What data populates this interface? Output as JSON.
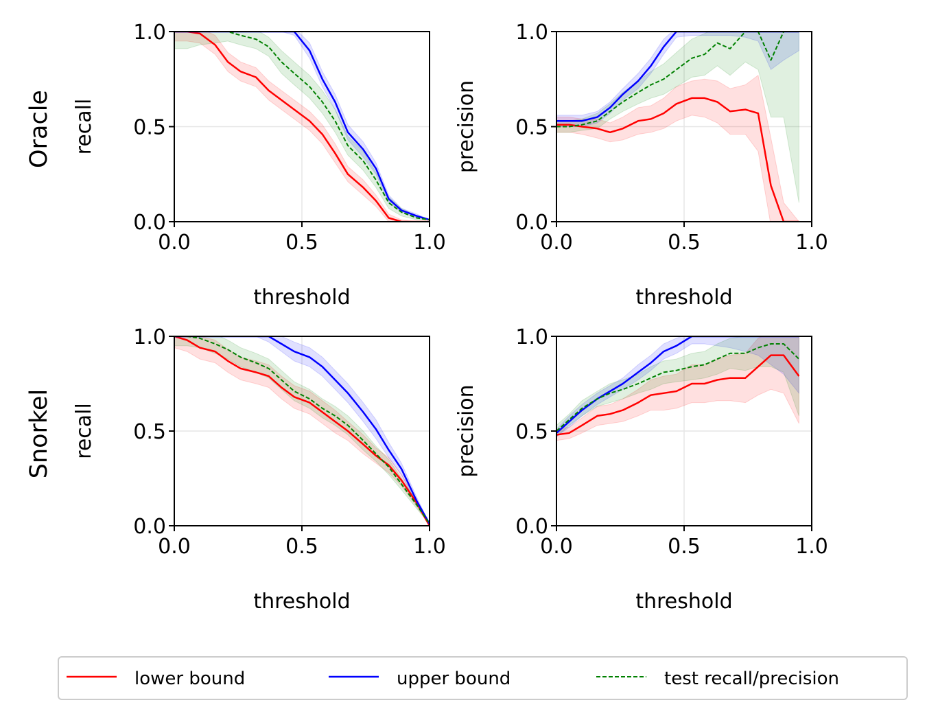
{
  "figure": {
    "row_labels": [
      "Oracle",
      "Snorkel"
    ],
    "colors": {
      "lower": "#ff0000",
      "upper": "#0000ff",
      "test": "#008000"
    },
    "legend": {
      "placement": "bottom-center",
      "entries": [
        {
          "key": "lower",
          "label": "lower bound",
          "style": "solid"
        },
        {
          "key": "upper",
          "label": "upper bound",
          "style": "solid"
        },
        {
          "key": "test",
          "label": "test recall/precision",
          "style": "dashed"
        }
      ]
    }
  },
  "chart_data": [
    {
      "type": "line",
      "row_label": "Oracle",
      "xlabel": "threshold",
      "ylabel": "recall",
      "xlim": [
        0,
        1
      ],
      "ylim": [
        0,
        1
      ],
      "xticks": [
        "0.0",
        "0.5",
        "1.0"
      ],
      "yticks": [
        "0.0",
        "0.5",
        "1.0"
      ],
      "grid": true,
      "x": [
        0.0,
        0.05,
        0.1,
        0.16,
        0.21,
        0.26,
        0.32,
        0.37,
        0.42,
        0.47,
        0.53,
        0.58,
        0.63,
        0.68,
        0.74,
        0.79,
        0.84,
        0.89,
        0.95,
        1.0
      ],
      "series": [
        {
          "key": "lower",
          "name": "lower bound",
          "style": "solid",
          "values": [
            1.0,
            1.0,
            0.99,
            0.93,
            0.84,
            0.79,
            0.76,
            0.69,
            0.64,
            0.59,
            0.53,
            0.46,
            0.36,
            0.25,
            0.18,
            0.11,
            0.02,
            0.0,
            0.0,
            0.0
          ],
          "band": [
            0.05,
            0.05,
            0.05,
            0.05,
            0.05,
            0.05,
            0.05,
            0.05,
            0.05,
            0.05,
            0.05,
            0.05,
            0.05,
            0.04,
            0.04,
            0.03,
            0.02,
            0.01,
            0.0,
            0.0
          ]
        },
        {
          "key": "upper",
          "name": "upper bound",
          "style": "solid",
          "values": [
            1.0,
            1.0,
            1.0,
            1.0,
            1.0,
            1.0,
            1.0,
            1.0,
            1.0,
            1.0,
            0.9,
            0.75,
            0.63,
            0.47,
            0.38,
            0.28,
            0.12,
            0.06,
            0.03,
            0.01
          ],
          "band": [
            0.0,
            0.0,
            0.0,
            0.0,
            0.0,
            0.0,
            0.0,
            0.0,
            0.0,
            0.02,
            0.04,
            0.04,
            0.04,
            0.04,
            0.04,
            0.03,
            0.02,
            0.01,
            0.01,
            0.0
          ]
        },
        {
          "key": "test",
          "name": "test recall/precision",
          "style": "dashed",
          "values": [
            1.0,
            1.0,
            1.0,
            1.0,
            1.0,
            0.98,
            0.96,
            0.92,
            0.84,
            0.78,
            0.71,
            0.63,
            0.53,
            0.4,
            0.32,
            0.22,
            0.1,
            0.05,
            0.02,
            0.01
          ],
          "band": [
            0.09,
            0.09,
            0.07,
            0.06,
            0.05,
            0.05,
            0.05,
            0.05,
            0.06,
            0.06,
            0.06,
            0.06,
            0.06,
            0.05,
            0.05,
            0.04,
            0.03,
            0.02,
            0.01,
            0.0
          ]
        }
      ]
    },
    {
      "type": "line",
      "row_label": "Oracle",
      "xlabel": "threshold",
      "ylabel": "precision",
      "xlim": [
        0,
        1
      ],
      "ylim": [
        0,
        1
      ],
      "xticks": [
        "0.0",
        "0.5",
        "1.0"
      ],
      "yticks": [
        "0.0",
        "0.5",
        "1.0"
      ],
      "grid": true,
      "x": [
        0.0,
        0.05,
        0.1,
        0.16,
        0.21,
        0.26,
        0.32,
        0.37,
        0.42,
        0.47,
        0.53,
        0.58,
        0.63,
        0.68,
        0.74,
        0.79,
        0.84,
        0.89,
        0.95
      ],
      "series": [
        {
          "key": "lower",
          "name": "lower bound",
          "style": "solid",
          "values": [
            0.51,
            0.51,
            0.5,
            0.49,
            0.47,
            0.49,
            0.53,
            0.54,
            0.57,
            0.62,
            0.65,
            0.65,
            0.63,
            0.58,
            0.59,
            0.57,
            0.19,
            0.0,
            0.0
          ],
          "band": [
            0.04,
            0.04,
            0.04,
            0.05,
            0.05,
            0.06,
            0.07,
            0.07,
            0.08,
            0.09,
            0.09,
            0.1,
            0.11,
            0.12,
            0.13,
            0.2,
            0.25,
            0.1,
            0.0
          ]
        },
        {
          "key": "upper",
          "name": "upper bound",
          "style": "solid",
          "values": [
            0.53,
            0.53,
            0.53,
            0.55,
            0.6,
            0.67,
            0.74,
            0.82,
            0.92,
            1.0,
            1.0,
            1.0,
            1.0,
            1.0,
            1.0,
            1.0,
            1.0,
            1.0,
            1.0
          ],
          "band": [
            0.03,
            0.03,
            0.03,
            0.03,
            0.03,
            0.03,
            0.04,
            0.04,
            0.04,
            0.03,
            0.02,
            0.02,
            0.02,
            0.02,
            0.03,
            0.05,
            0.2,
            0.15,
            0.1
          ]
        },
        {
          "key": "test",
          "name": "test recall/precision",
          "style": "dashed",
          "values": [
            0.5,
            0.5,
            0.51,
            0.53,
            0.58,
            0.63,
            0.68,
            0.72,
            0.75,
            0.8,
            0.86,
            0.88,
            0.94,
            0.91,
            1.0,
            1.0,
            0.85,
            1.0,
            1.0
          ],
          "band": [
            0.03,
            0.03,
            0.03,
            0.04,
            0.04,
            0.05,
            0.06,
            0.07,
            0.08,
            0.09,
            0.1,
            0.11,
            0.12,
            0.14,
            0.16,
            0.2,
            0.3,
            0.45,
            0.9
          ]
        }
      ]
    },
    {
      "type": "line",
      "row_label": "Snorkel",
      "xlabel": "threshold",
      "ylabel": "recall",
      "xlim": [
        0,
        1
      ],
      "ylim": [
        0,
        1
      ],
      "xticks": [
        "0.0",
        "0.5",
        "1.0"
      ],
      "yticks": [
        "0.0",
        "0.5",
        "1.0"
      ],
      "grid": true,
      "x": [
        0.0,
        0.05,
        0.1,
        0.16,
        0.21,
        0.26,
        0.32,
        0.37,
        0.42,
        0.47,
        0.53,
        0.58,
        0.63,
        0.68,
        0.74,
        0.79,
        0.84,
        0.89,
        0.95,
        1.0
      ],
      "series": [
        {
          "key": "lower",
          "name": "lower bound",
          "style": "solid",
          "values": [
            1.0,
            0.98,
            0.94,
            0.92,
            0.87,
            0.83,
            0.81,
            0.79,
            0.73,
            0.68,
            0.65,
            0.6,
            0.55,
            0.5,
            0.43,
            0.37,
            0.32,
            0.24,
            0.12,
            0.0
          ],
          "band": [
            0.06,
            0.06,
            0.06,
            0.06,
            0.06,
            0.06,
            0.06,
            0.06,
            0.06,
            0.06,
            0.06,
            0.06,
            0.06,
            0.05,
            0.05,
            0.04,
            0.04,
            0.03,
            0.02,
            0.0
          ]
        },
        {
          "key": "upper",
          "name": "upper bound",
          "style": "solid",
          "values": [
            1.0,
            1.0,
            1.0,
            1.0,
            1.0,
            1.0,
            1.0,
            1.0,
            0.96,
            0.92,
            0.89,
            0.84,
            0.77,
            0.7,
            0.6,
            0.51,
            0.4,
            0.3,
            0.13,
            0.01
          ],
          "band": [
            0.0,
            0.0,
            0.0,
            0.0,
            0.0,
            0.0,
            0.0,
            0.03,
            0.04,
            0.05,
            0.05,
            0.05,
            0.05,
            0.05,
            0.05,
            0.05,
            0.04,
            0.03,
            0.02,
            0.0
          ]
        },
        {
          "key": "test",
          "name": "test recall/precision",
          "style": "dashed",
          "values": [
            1.0,
            1.0,
            0.99,
            0.96,
            0.93,
            0.89,
            0.86,
            0.83,
            0.77,
            0.71,
            0.67,
            0.62,
            0.58,
            0.53,
            0.45,
            0.38,
            0.31,
            0.22,
            0.11,
            0.01
          ],
          "band": [
            0.05,
            0.05,
            0.05,
            0.05,
            0.05,
            0.05,
            0.05,
            0.05,
            0.05,
            0.05,
            0.05,
            0.05,
            0.05,
            0.05,
            0.05,
            0.04,
            0.04,
            0.03,
            0.02,
            0.0
          ]
        }
      ]
    },
    {
      "type": "line",
      "row_label": "Snorkel",
      "xlabel": "threshold",
      "ylabel": "precision",
      "xlim": [
        0,
        1
      ],
      "ylim": [
        0,
        1
      ],
      "xticks": [
        "0.0",
        "0.5",
        "1.0"
      ],
      "yticks": [
        "0.0",
        "0.5",
        "1.0"
      ],
      "grid": true,
      "x": [
        0.0,
        0.05,
        0.1,
        0.16,
        0.21,
        0.26,
        0.32,
        0.37,
        0.42,
        0.47,
        0.53,
        0.58,
        0.63,
        0.68,
        0.74,
        0.79,
        0.84,
        0.89,
        0.95
      ],
      "series": [
        {
          "key": "lower",
          "name": "lower bound",
          "style": "solid",
          "values": [
            0.48,
            0.49,
            0.53,
            0.58,
            0.59,
            0.61,
            0.65,
            0.69,
            0.7,
            0.71,
            0.75,
            0.75,
            0.77,
            0.78,
            0.78,
            0.84,
            0.9,
            0.9,
            0.79
          ],
          "band": [
            0.03,
            0.03,
            0.04,
            0.05,
            0.05,
            0.06,
            0.07,
            0.08,
            0.09,
            0.09,
            0.1,
            0.1,
            0.11,
            0.12,
            0.13,
            0.15,
            0.18,
            0.2,
            0.25
          ]
        },
        {
          "key": "upper",
          "name": "upper bound",
          "style": "solid",
          "values": [
            0.49,
            0.55,
            0.61,
            0.67,
            0.71,
            0.75,
            0.81,
            0.86,
            0.92,
            0.95,
            1.0,
            1.0,
            1.0,
            1.0,
            1.0,
            1.0,
            1.0,
            1.0,
            1.0
          ],
          "band": [
            0.02,
            0.03,
            0.03,
            0.03,
            0.03,
            0.03,
            0.04,
            0.04,
            0.04,
            0.04,
            0.04,
            0.04,
            0.05,
            0.06,
            0.08,
            0.1,
            0.15,
            0.2,
            0.3
          ]
        },
        {
          "key": "test",
          "name": "test recall/precision",
          "style": "dashed",
          "values": [
            0.5,
            0.56,
            0.62,
            0.67,
            0.7,
            0.72,
            0.75,
            0.78,
            0.81,
            0.82,
            0.84,
            0.85,
            0.88,
            0.91,
            0.91,
            0.94,
            0.96,
            0.96,
            0.88
          ],
          "band": [
            0.03,
            0.03,
            0.04,
            0.04,
            0.05,
            0.05,
            0.05,
            0.06,
            0.06,
            0.06,
            0.07,
            0.07,
            0.08,
            0.08,
            0.09,
            0.1,
            0.12,
            0.15,
            0.3
          ]
        }
      ]
    }
  ]
}
